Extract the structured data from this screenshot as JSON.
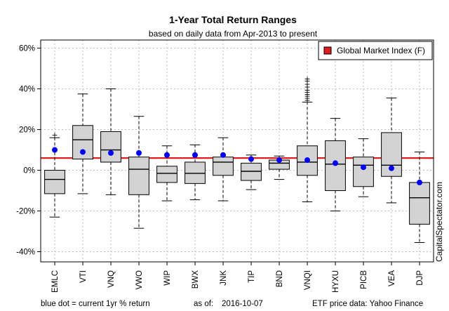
{
  "chart_data": {
    "type": "box",
    "title": "1-Year Total Return Ranges",
    "subtitle": "based on daily data from Apr-2013 to present",
    "ylim": [
      -45,
      64
    ],
    "yticks": [
      -40,
      -20,
      0,
      20,
      40,
      60
    ],
    "ytick_labels": [
      "-40%",
      "-20%",
      "0%",
      "20%",
      "40%",
      "60%"
    ],
    "grid": true,
    "categories": [
      "EMLC",
      "VTI",
      "VNQ",
      "VWO",
      "WIP",
      "BWX",
      "JNK",
      "TIP",
      "BND",
      "VNQI",
      "HYXU",
      "PICB",
      "VEA",
      "DJP"
    ],
    "boxes": [
      {
        "min": -23,
        "q1": -11.5,
        "median": -4.5,
        "q3": 0,
        "max": 16,
        "outliers": [
          17.5
        ]
      },
      {
        "min": -11.5,
        "q1": 5.5,
        "median": 15,
        "q3": 22,
        "max": 37.5,
        "outliers": []
      },
      {
        "min": -12,
        "q1": 4,
        "median": 10,
        "q3": 19,
        "max": 40,
        "outliers": []
      },
      {
        "min": -28.5,
        "q1": -12,
        "median": 0.5,
        "q3": 6.5,
        "max": 26.5,
        "outliers": []
      },
      {
        "min": -15,
        "q1": -6,
        "median": -1.5,
        "q3": 2,
        "max": 12,
        "outliers": []
      },
      {
        "min": -14.5,
        "q1": -6.5,
        "median": -1.5,
        "q3": 4,
        "max": 12.5,
        "outliers": []
      },
      {
        "min": -15,
        "q1": -2.5,
        "median": 4,
        "q3": 6.5,
        "max": 16,
        "outliers": []
      },
      {
        "min": -9.5,
        "q1": -5,
        "median": -0.5,
        "q3": 3.5,
        "max": 7.5,
        "outliers": []
      },
      {
        "min": -4.5,
        "q1": 0.5,
        "median": 3.5,
        "q3": 5,
        "max": 7,
        "outliers": []
      },
      {
        "min": -15.5,
        "q1": -2.5,
        "median": 4,
        "q3": 12,
        "max": 33.5,
        "outliers": [
          34.5,
          35.5,
          36.5,
          37.5,
          38.5,
          39.5,
          41,
          42.5,
          44,
          45
        ]
      },
      {
        "min": -20,
        "q1": -10,
        "median": 3,
        "q3": 14.5,
        "max": 25.5,
        "outliers": []
      },
      {
        "min": -13,
        "q1": -8,
        "median": 2.5,
        "q3": 6.5,
        "max": 15.5,
        "outliers": []
      },
      {
        "min": -16,
        "q1": -3,
        "median": 2.5,
        "q3": 18.5,
        "max": 35.5,
        "outliers": []
      },
      {
        "min": -35.5,
        "q1": -26.5,
        "median": -13.5,
        "q3": -6,
        "max": 9,
        "outliers": []
      }
    ],
    "current_1yr_return": [
      10,
      9,
      8.5,
      8.5,
      7.5,
      7.5,
      7.5,
      5.5,
      5,
      5,
      3.5,
      1.5,
      1,
      -6
    ],
    "reference_line": {
      "name": "Global Market Index (F)",
      "value": 6,
      "color": "#e41a1c"
    },
    "legend_position": "top-right",
    "box_fill": "#d3d3d3",
    "dot_color": "#0000ff"
  },
  "side_label": "CapitalSpectator.com",
  "footer": {
    "left": "blue dot = current 1yr % return",
    "as_of_label": "as of:",
    "as_of_date": "2016-10-07",
    "right": "ETF price data: Yahoo Finance"
  }
}
